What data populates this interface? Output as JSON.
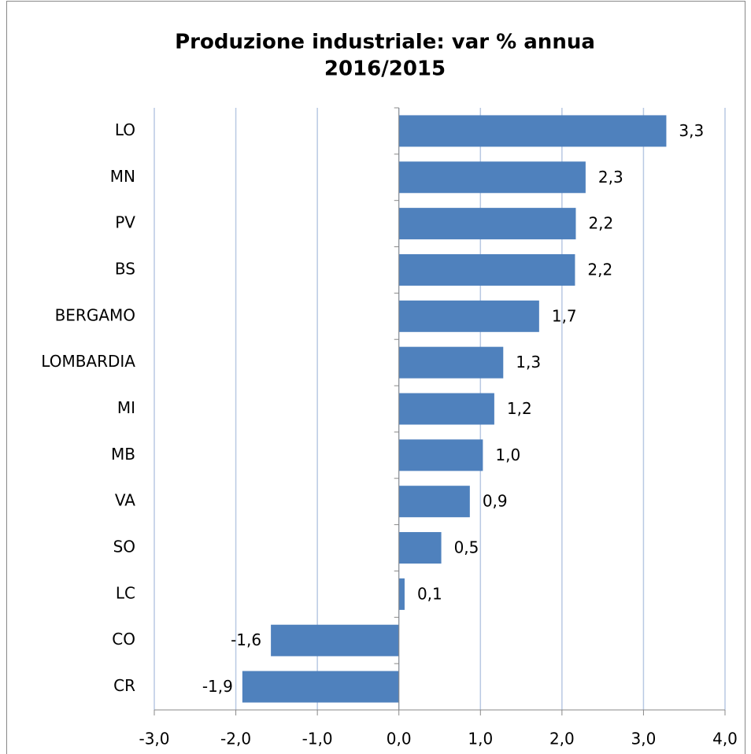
{
  "chart_data": {
    "type": "barh",
    "title": [
      "Produzione industriale: var % annua",
      "2016/2015"
    ],
    "categories": [
      "LO",
      "MN",
      "PV",
      "BS",
      "BERGAMO",
      "LOMBARDIA",
      "MI",
      "MB",
      "VA",
      "SO",
      "LC",
      "CO",
      "CR"
    ],
    "values": [
      3.28,
      2.29,
      2.17,
      2.16,
      1.72,
      1.28,
      1.17,
      1.03,
      0.87,
      0.52,
      0.07,
      -1.57,
      -1.92
    ],
    "value_labels": [
      "3,3",
      "2,3",
      "2,2",
      "2,2",
      "1,7",
      "1,3",
      "1,2",
      "1,0",
      "0,9",
      "0,5",
      "0,1",
      "-1,6",
      "-1,9"
    ],
    "color": "#4f81bd",
    "xlim": [
      -3,
      4
    ],
    "xticks": [
      {
        "value": -3,
        "label": "-3,0"
      },
      {
        "value": -2,
        "label": "-2,0"
      },
      {
        "value": -1,
        "label": "-1,0"
      },
      {
        "value": 0,
        "label": "0,0"
      },
      {
        "value": 1,
        "label": "1,0"
      },
      {
        "value": 2,
        "label": "2,0"
      },
      {
        "value": 3,
        "label": "3,0"
      },
      {
        "value": 4,
        "label": "4,0"
      }
    ],
    "grid": true
  }
}
